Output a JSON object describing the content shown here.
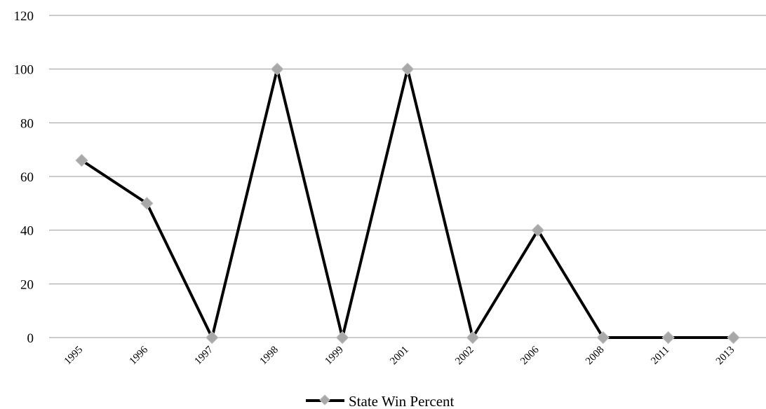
{
  "chart_data": {
    "type": "line",
    "categories": [
      "1995",
      "1996",
      "1997",
      "1998",
      "1999",
      "2001",
      "2002",
      "2006",
      "2008",
      "2011",
      "2013"
    ],
    "series": [
      {
        "name": "State Win Percent",
        "values": [
          66,
          50,
          0,
          100,
          0,
          100,
          0,
          40,
          0,
          0,
          0
        ],
        "color": "#000000",
        "marker_color": "#a8a8a8",
        "marker": "diamond"
      }
    ],
    "yticks": [
      0,
      20,
      40,
      60,
      80,
      100,
      120
    ],
    "ylim": [
      0,
      120
    ],
    "grid": true,
    "legend": "bottom-center"
  }
}
